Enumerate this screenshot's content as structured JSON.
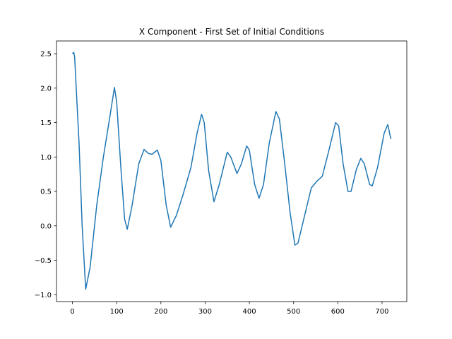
{
  "chart_data": {
    "type": "line",
    "title": "X Component - First Set of Initial Conditions",
    "x": [
      0,
      3,
      5,
      15,
      22,
      30,
      40,
      55,
      70,
      85,
      95,
      100,
      110,
      118,
      124,
      135,
      150,
      162,
      172,
      180,
      192,
      200,
      212,
      222,
      235,
      250,
      268,
      282,
      292,
      298,
      308,
      320,
      332,
      350,
      358,
      372,
      382,
      394,
      400,
      412,
      422,
      432,
      445,
      460,
      468,
      480,
      492,
      503,
      510,
      525,
      540,
      553,
      565,
      580,
      595,
      602,
      612,
      623,
      630,
      642,
      652,
      660,
      672,
      678,
      690,
      705,
      713,
      720
    ],
    "values": [
      2.5,
      2.52,
      2.45,
      1.2,
      0,
      -0.92,
      -0.6,
      0.3,
      1.0,
      1.6,
      2.01,
      1.8,
      0.8,
      0.1,
      -0.05,
      0.3,
      0.9,
      1.11,
      1.05,
      1.04,
      1.1,
      0.95,
      0.3,
      -0.02,
      0.15,
      0.45,
      0.85,
      1.35,
      1.62,
      1.5,
      0.8,
      0.35,
      0.6,
      1.07,
      1.0,
      0.76,
      0.9,
      1.16,
      1.1,
      0.6,
      0.4,
      0.6,
      1.2,
      1.66,
      1.55,
      0.9,
      0.2,
      -0.28,
      -0.25,
      0.15,
      0.55,
      0.65,
      0.72,
      1.1,
      1.5,
      1.45,
      0.9,
      0.5,
      0.5,
      0.82,
      0.98,
      0.9,
      0.6,
      0.58,
      0.85,
      1.35,
      1.47,
      1.26
    ],
    "color": "#1f77b4",
    "xlim": [
      -36,
      756
    ],
    "xticks": [
      0,
      100,
      200,
      300,
      400,
      500,
      600,
      700
    ],
    "ylim": [
      -1.1,
      2.685
    ],
    "yticks": [
      {
        "value": -1.0,
        "label": "−1.0"
      },
      {
        "value": -0.5,
        "label": "−0.5"
      },
      {
        "value": 0,
        "label": "0.0"
      },
      0.5,
      {
        "value": 1.0,
        "label": "1.0"
      },
      1.5,
      {
        "value": 2.0,
        "label": "2.0"
      },
      2.5
    ]
  }
}
